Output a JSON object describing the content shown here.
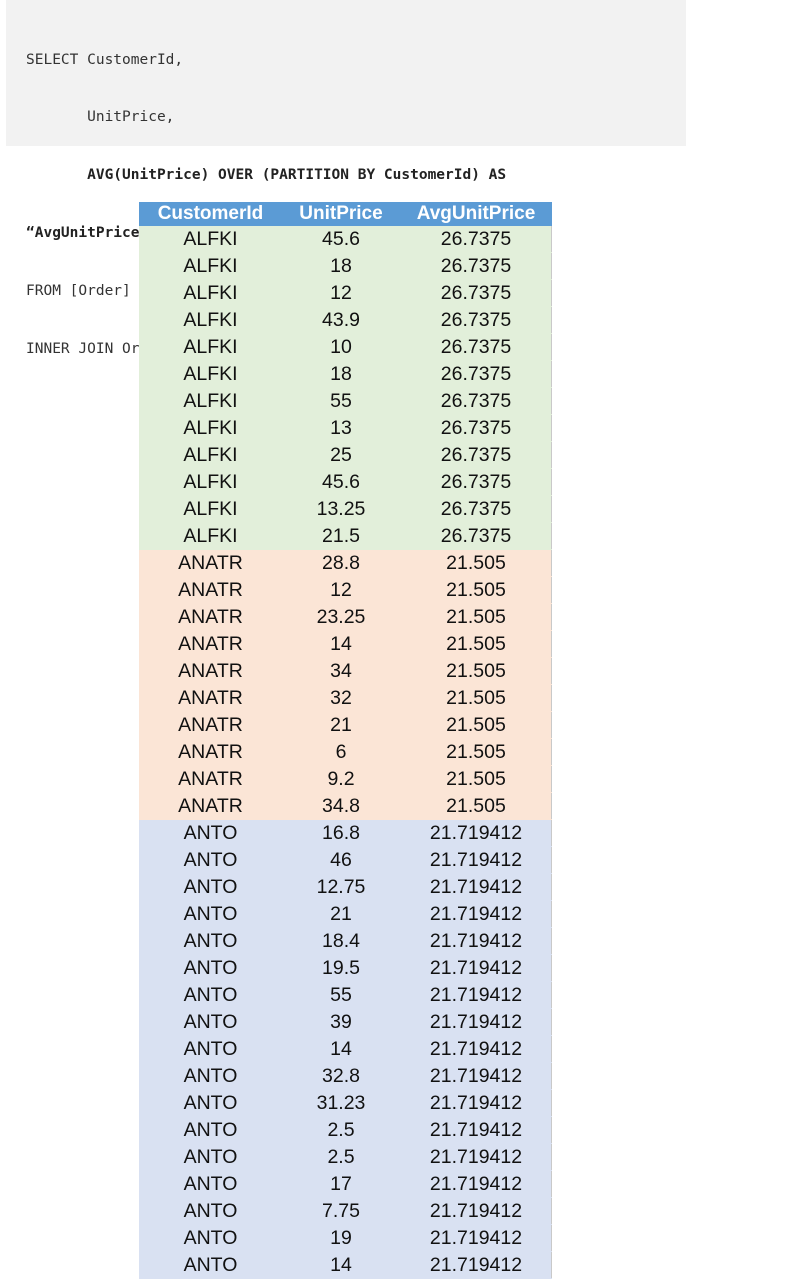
{
  "sql": {
    "lines": [
      {
        "text": "SELECT CustomerId,",
        "bold": false
      },
      {
        "text": "       UnitPrice,",
        "bold": false
      },
      {
        "text": "       AVG(UnitPrice) OVER (PARTITION BY CustomerId) AS",
        "bold": true
      },
      {
        "text": "“AvgUnitPrice”",
        "bold": true
      },
      {
        "text": "FROM [Order]",
        "bold": false
      },
      {
        "text": "INNER JOIN OrderDetail ON [Order].Id = OrderDetail.OrderId",
        "bold": false
      }
    ]
  },
  "table": {
    "headers": [
      "CustomerId",
      "UnitPrice",
      "AvgUnitPrice"
    ],
    "group_colors": {
      "ALFKI": "#e2efda",
      "ANATR": "#fbe5d6",
      "ANTO": "#d9e1f2"
    },
    "header_color": "#5b9bd5",
    "rows": [
      [
        "ALFKI",
        "45.6",
        "26.7375"
      ],
      [
        "ALFKI",
        "18",
        "26.7375"
      ],
      [
        "ALFKI",
        "12",
        "26.7375"
      ],
      [
        "ALFKI",
        "43.9",
        "26.7375"
      ],
      [
        "ALFKI",
        "10",
        "26.7375"
      ],
      [
        "ALFKI",
        "18",
        "26.7375"
      ],
      [
        "ALFKI",
        "55",
        "26.7375"
      ],
      [
        "ALFKI",
        "13",
        "26.7375"
      ],
      [
        "ALFKI",
        "25",
        "26.7375"
      ],
      [
        "ALFKI",
        "45.6",
        "26.7375"
      ],
      [
        "ALFKI",
        "13.25",
        "26.7375"
      ],
      [
        "ALFKI",
        "21.5",
        "26.7375"
      ],
      [
        "ANATR",
        "28.8",
        "21.505"
      ],
      [
        "ANATR",
        "12",
        "21.505"
      ],
      [
        "ANATR",
        "23.25",
        "21.505"
      ],
      [
        "ANATR",
        "14",
        "21.505"
      ],
      [
        "ANATR",
        "34",
        "21.505"
      ],
      [
        "ANATR",
        "32",
        "21.505"
      ],
      [
        "ANATR",
        "21",
        "21.505"
      ],
      [
        "ANATR",
        "6",
        "21.505"
      ],
      [
        "ANATR",
        "9.2",
        "21.505"
      ],
      [
        "ANATR",
        "34.8",
        "21.505"
      ],
      [
        "ANTO",
        "16.8",
        "21.719412"
      ],
      [
        "ANTO",
        "46",
        "21.719412"
      ],
      [
        "ANTO",
        "12.75",
        "21.719412"
      ],
      [
        "ANTO",
        "21",
        "21.719412"
      ],
      [
        "ANTO",
        "18.4",
        "21.719412"
      ],
      [
        "ANTO",
        "19.5",
        "21.719412"
      ],
      [
        "ANTO",
        "55",
        "21.719412"
      ],
      [
        "ANTO",
        "39",
        "21.719412"
      ],
      [
        "ANTO",
        "14",
        "21.719412"
      ],
      [
        "ANTO",
        "32.8",
        "21.719412"
      ],
      [
        "ANTO",
        "31.23",
        "21.719412"
      ],
      [
        "ANTO",
        "2.5",
        "21.719412"
      ],
      [
        "ANTO",
        "2.5",
        "21.719412"
      ],
      [
        "ANTO",
        "17",
        "21.719412"
      ],
      [
        "ANTO",
        "7.75",
        "21.719412"
      ],
      [
        "ANTO",
        "19",
        "21.719412"
      ],
      [
        "ANTO",
        "14",
        "21.719412"
      ]
    ]
  }
}
